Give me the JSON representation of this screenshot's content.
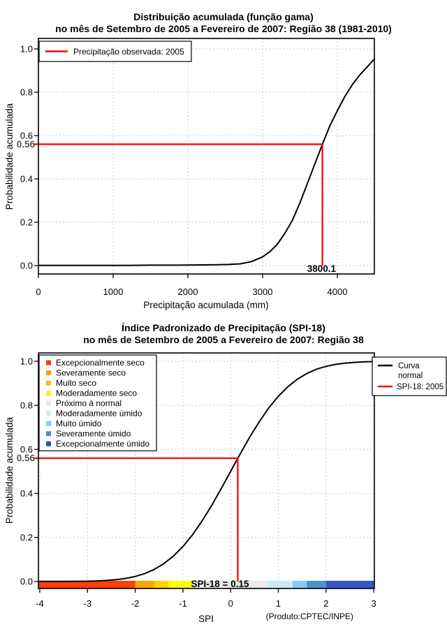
{
  "page": {
    "background": "#FFFFFF"
  },
  "styles": {
    "grid_color": "#C8C8C8",
    "axis_color": "#000000",
    "curve_color": "#000000",
    "highlight_color": "#FF0000",
    "prob_label_color": "#555555"
  },
  "chart_data": [
    {
      "type": "line",
      "title": "Distribuição acumulada (função gama)",
      "subtitle": "no mês de Setembro de 2005 a Fevereiro de 2007: Região 38 (1981-2010)",
      "xlabel": "Precipitação acumulada (mm)",
      "ylabel": "Probabilidade acumulada",
      "xlim": [
        0,
        4500
      ],
      "ylim": [
        0,
        1.0
      ],
      "grid": true,
      "legend_position": "top-left",
      "xticks": [
        0,
        1000,
        2000,
        3000,
        4000
      ],
      "xtick_labels": [
        "0",
        "1000",
        "2000",
        "3000",
        "4000"
      ],
      "yticks": [
        0,
        0.2,
        0.4,
        0.6,
        0.8,
        1.0
      ],
      "ytick_labels": [
        "0.0",
        "0.2",
        "0.4",
        "0.6",
        "0.8",
        "1.0"
      ],
      "legend": [
        {
          "label": "Precipitação observada: 2005",
          "color": "#FF0000",
          "type": "line"
        }
      ],
      "series": [
        {
          "name": "Distribuição gama acumulada",
          "color": "#000000",
          "points": [
            [
              0,
              0.001
            ],
            [
              300,
              0.001
            ],
            [
              600,
              0.001
            ],
            [
              900,
              0.001
            ],
            [
              1200,
              0.001
            ],
            [
              1500,
              0.002
            ],
            [
              1800,
              0.002
            ],
            [
              2100,
              0.003
            ],
            [
              2400,
              0.004
            ],
            [
              2550,
              0.005
            ],
            [
              2700,
              0.008
            ],
            [
              2850,
              0.018
            ],
            [
              3000,
              0.04
            ],
            [
              3100,
              0.065
            ],
            [
              3200,
              0.1
            ],
            [
              3300,
              0.15
            ],
            [
              3400,
              0.21
            ],
            [
              3500,
              0.29
            ],
            [
              3600,
              0.38
            ],
            [
              3700,
              0.47
            ],
            [
              3800,
              0.56
            ],
            [
              3900,
              0.645
            ],
            [
              4000,
              0.715
            ],
            [
              4100,
              0.78
            ],
            [
              4200,
              0.835
            ],
            [
              4300,
              0.88
            ],
            [
              4400,
              0.917
            ],
            [
              4495,
              0.953
            ]
          ]
        }
      ],
      "highlight": {
        "x": 3800.1,
        "y": 0.56,
        "x_label": "3800.1",
        "y_label": "0.56",
        "color": "#FF0000"
      }
    },
    {
      "type": "line",
      "title": "Índice Padronizado de Precipitação (SPI-18)",
      "subtitle": "no mês de Setembro de 2005 a Fevereiro de 2007: Região 38",
      "xlabel": "SPI",
      "ylabel": "Probabilidade acumulada",
      "footnote": "(Produto:CPTEC/INPE)",
      "xlim": [
        -4,
        3
      ],
      "ylim": [
        0,
        1.0
      ],
      "grid": true,
      "xticks": [
        -4,
        -3,
        -2,
        -1,
        0,
        1,
        2,
        3
      ],
      "xtick_labels": [
        "-4",
        "-3",
        "-2",
        "-1",
        "0",
        "1",
        "2",
        "3"
      ],
      "yticks": [
        0,
        0.2,
        0.4,
        0.6,
        0.8,
        1.0
      ],
      "ytick_labels": [
        "0.0",
        "0.2",
        "0.4",
        "0.6",
        "0.8",
        "1.0"
      ],
      "categories_legend": [
        {
          "label": "Excepcionalmente seco",
          "color": "#F23C10"
        },
        {
          "label": "Severamente seco",
          "color": "#FA9D1B"
        },
        {
          "label": "Muito seco",
          "color": "#F2BE1A"
        },
        {
          "label": "Moderadamente seco",
          "color": "#FBF116"
        },
        {
          "label": "Próximo à normal",
          "color": "#E7E7E7"
        },
        {
          "label": "Moderadamente úmido",
          "color": "#CBEAFA"
        },
        {
          "label": "Muito úmido",
          "color": "#85CAF2"
        },
        {
          "label": "Severamente úmido",
          "color": "#4B91CC"
        },
        {
          "label": "Excepcionalmente úmido",
          "color": "#2D55BE"
        }
      ],
      "curve_legend": [
        {
          "label_lines": [
            "Curva",
            "normal"
          ],
          "color": "#000000"
        },
        {
          "label_lines": [
            "SPI-18: 2005"
          ],
          "color": "#FF0000"
        }
      ],
      "series": [
        {
          "name": "Curva normal",
          "color": "#000000",
          "points": [
            [
              -4,
              0.0002
            ],
            [
              -3.5,
              0.0004
            ],
            [
              -3,
              0.0013
            ],
            [
              -2.8,
              0.0026
            ],
            [
              -2.6,
              0.0047
            ],
            [
              -2.4,
              0.0082
            ],
            [
              -2.2,
              0.0139
            ],
            [
              -2,
              0.0228
            ],
            [
              -1.8,
              0.0359
            ],
            [
              -1.6,
              0.0548
            ],
            [
              -1.4,
              0.0808
            ],
            [
              -1.2,
              0.1151
            ],
            [
              -1,
              0.1587
            ],
            [
              -0.8,
              0.2119
            ],
            [
              -0.6,
              0.2743
            ],
            [
              -0.4,
              0.3446
            ],
            [
              -0.2,
              0.4207
            ],
            [
              0,
              0.5
            ],
            [
              0.15,
              0.5596
            ],
            [
              0.4,
              0.6554
            ],
            [
              0.6,
              0.7257
            ],
            [
              0.8,
              0.7881
            ],
            [
              1,
              0.8413
            ],
            [
              1.2,
              0.8849
            ],
            [
              1.4,
              0.9192
            ],
            [
              1.6,
              0.9452
            ],
            [
              1.8,
              0.9641
            ],
            [
              2,
              0.9772
            ],
            [
              2.2,
              0.9861
            ],
            [
              2.4,
              0.9918
            ],
            [
              2.6,
              0.9953
            ],
            [
              2.8,
              0.9974
            ],
            [
              3,
              0.9987
            ]
          ]
        }
      ],
      "highlight": {
        "x": 0.15,
        "y": 0.56,
        "bar_label": "SPI-18 = 0.15",
        "y_label": "0.56",
        "color": "#FF0000"
      },
      "colorbar": [
        {
          "from": -4.05,
          "to": -2.0,
          "color": "#FC4009"
        },
        {
          "from": -2.0,
          "to": -1.6,
          "color": "#FFA303"
        },
        {
          "from": -1.6,
          "to": -1.3,
          "color": "#FFD400"
        },
        {
          "from": -1.3,
          "to": -0.8,
          "color": "#FFFF00"
        },
        {
          "from": -0.8,
          "to": 0.8,
          "color": "#E9E9E9"
        },
        {
          "from": 0.8,
          "to": 1.3,
          "color": "#C9E9FA"
        },
        {
          "from": 1.3,
          "to": 1.6,
          "color": "#85CAF2"
        },
        {
          "from": 1.6,
          "to": 2.0,
          "color": "#4B91CC"
        },
        {
          "from": 2.0,
          "to": 3.03,
          "color": "#3358C6"
        }
      ]
    }
  ]
}
